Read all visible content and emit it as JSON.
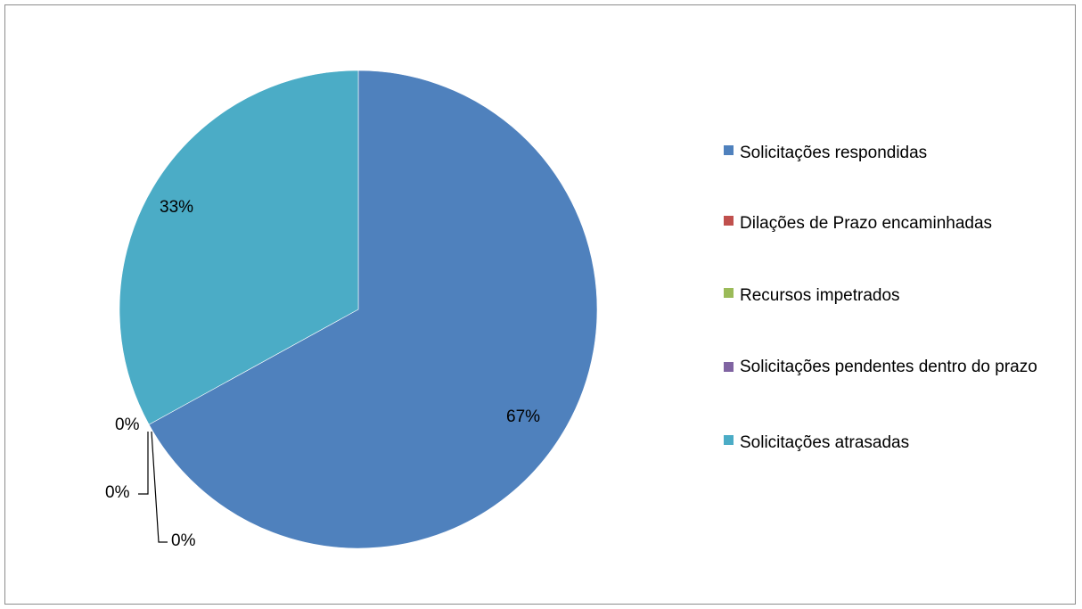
{
  "chart_data": {
    "type": "pie",
    "categories": [
      "Solicitações respondidas",
      "Dilações de Prazo encaminhadas",
      "Recursos impetrados",
      "Solicitações pendentes dentro do prazo",
      "Solicitações atrasadas"
    ],
    "values": [
      67,
      0,
      0,
      0,
      33
    ],
    "data_labels": [
      "67%",
      "0%",
      "0%",
      "0%",
      "33%"
    ],
    "colors": [
      "#4f81bd",
      "#c0504d",
      "#9bbb59",
      "#8064a2",
      "#4bacc6"
    ],
    "legend_position": "right",
    "title": ""
  }
}
